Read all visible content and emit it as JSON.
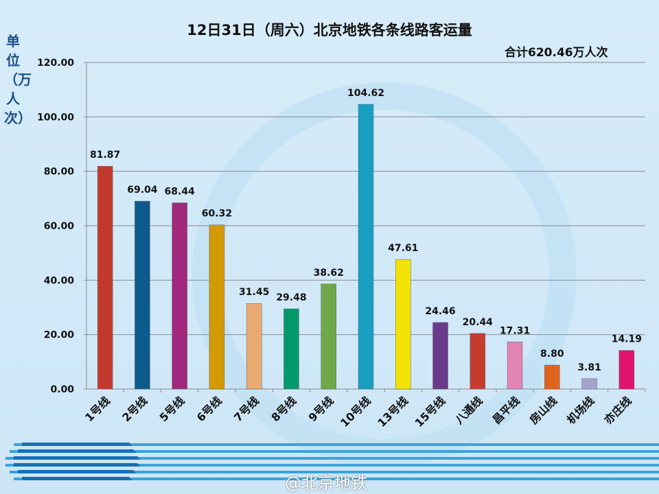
{
  "chart_data": {
    "type": "bar",
    "title": "12日31日（周六）北京地铁各条线路客运量",
    "annotation": "合计620.46万人次",
    "ylabel": "单位（万人次）",
    "xlabel": "",
    "ylim": [
      0,
      120
    ],
    "yticks": [
      "0.00",
      "20.00",
      "40.00",
      "60.00",
      "80.00",
      "100.00",
      "120.00"
    ],
    "grid": true,
    "categories": [
      "1号线",
      "2号线",
      "5号线",
      "6号线",
      "7号线",
      "8号线",
      "9号线",
      "10号线",
      "13号线",
      "15号线",
      "八通线",
      "昌平线",
      "房山线",
      "机场线",
      "亦庄线"
    ],
    "values": [
      81.87,
      69.04,
      68.44,
      60.32,
      31.45,
      29.48,
      38.62,
      104.62,
      47.61,
      24.46,
      20.44,
      17.31,
      8.8,
      3.81,
      14.19
    ],
    "data_labels": [
      "81.87",
      "69.04",
      "68.44",
      "60.32",
      "31.45",
      "29.48",
      "38.62",
      "104.62",
      "47.61",
      "24.46",
      "20.44",
      "17.31",
      "8.80",
      "3.81",
      "14.19"
    ],
    "colors": [
      "#c23a2e",
      "#0d5b8e",
      "#a1287c",
      "#d29a05",
      "#e9aa72",
      "#04996b",
      "#6fa84b",
      "#189fc2",
      "#f2e205",
      "#6a3a8c",
      "#c63b30",
      "#e184b3",
      "#e0621f",
      "#a3a3cb",
      "#e0146c"
    ]
  },
  "watermark": "@北京地铁"
}
